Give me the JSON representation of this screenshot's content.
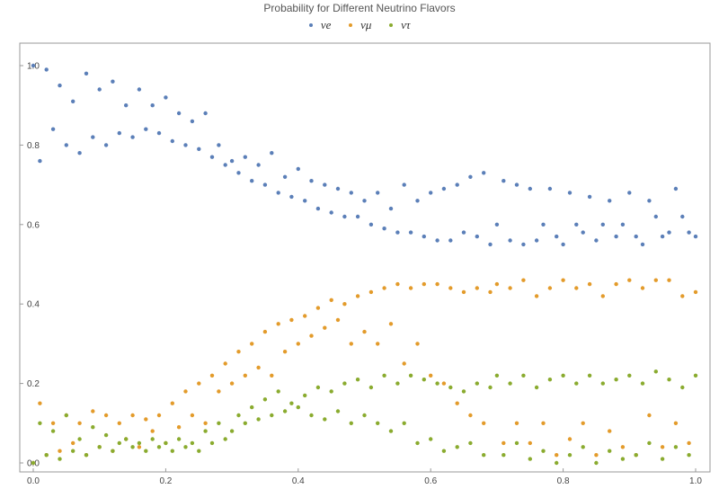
{
  "chart_data": {
    "type": "scatter",
    "title": "Probability for Different Neutrino Flavors",
    "xlabel": "",
    "ylabel": "",
    "xlim": [
      0,
      1
    ],
    "ylim": [
      0,
      1.05
    ],
    "grid": false,
    "legend_position": "top-center",
    "x_ticks": [
      "0.0",
      "0.2",
      "0.4",
      "0.6",
      "0.8",
      "1.0"
    ],
    "y_ticks": [
      "0.0",
      "0.2",
      "0.4",
      "0.6",
      "0.8",
      "1.0"
    ],
    "series": [
      {
        "name": "νe",
        "color": "#5b7fb8",
        "x": [
          0.0,
          0.01,
          0.02,
          0.03,
          0.04,
          0.05,
          0.06,
          0.07,
          0.08,
          0.09,
          0.1,
          0.11,
          0.12,
          0.13,
          0.14,
          0.15,
          0.16,
          0.17,
          0.18,
          0.19,
          0.2,
          0.21,
          0.22,
          0.23,
          0.24,
          0.25,
          0.26,
          0.27,
          0.28,
          0.29,
          0.3,
          0.31,
          0.32,
          0.33,
          0.34,
          0.35,
          0.36,
          0.37,
          0.38,
          0.39,
          0.4,
          0.41,
          0.42,
          0.43,
          0.44,
          0.45,
          0.46,
          0.47,
          0.48,
          0.49,
          0.5,
          0.51,
          0.52,
          0.53,
          0.54,
          0.55,
          0.56,
          0.57,
          0.58,
          0.59,
          0.6,
          0.61,
          0.62,
          0.63,
          0.64,
          0.65,
          0.66,
          0.67,
          0.68,
          0.69,
          0.7,
          0.71,
          0.72,
          0.73,
          0.74,
          0.75,
          0.76,
          0.77,
          0.78,
          0.79,
          0.8,
          0.81,
          0.82,
          0.83,
          0.84,
          0.85,
          0.86,
          0.87,
          0.88,
          0.89,
          0.9,
          0.91,
          0.92,
          0.93,
          0.94,
          0.95,
          0.96,
          0.97,
          0.98,
          0.99,
          1.0
        ],
        "values": [
          1.0,
          0.76,
          0.99,
          0.84,
          0.95,
          0.8,
          0.91,
          0.78,
          0.98,
          0.82,
          0.94,
          0.8,
          0.96,
          0.83,
          0.9,
          0.82,
          0.94,
          0.84,
          0.9,
          0.83,
          0.92,
          0.81,
          0.88,
          0.8,
          0.86,
          0.79,
          0.88,
          0.77,
          0.8,
          0.75,
          0.76,
          0.73,
          0.77,
          0.71,
          0.75,
          0.7,
          0.78,
          0.68,
          0.72,
          0.67,
          0.74,
          0.66,
          0.71,
          0.64,
          0.7,
          0.63,
          0.69,
          0.62,
          0.68,
          0.62,
          0.66,
          0.6,
          0.68,
          0.59,
          0.64,
          0.58,
          0.7,
          0.58,
          0.66,
          0.57,
          0.68,
          0.56,
          0.69,
          0.56,
          0.7,
          0.58,
          0.72,
          0.57,
          0.73,
          0.55,
          0.6,
          0.71,
          0.56,
          0.7,
          0.55,
          0.69,
          0.56,
          0.6,
          0.69,
          0.57,
          0.55,
          0.68,
          0.6,
          0.58,
          0.67,
          0.56,
          0.6,
          0.66,
          0.57,
          0.6,
          0.68,
          0.57,
          0.55,
          0.66,
          0.62,
          0.57,
          0.58,
          0.69,
          0.62,
          0.58,
          0.57
        ]
      },
      {
        "name": "νμ",
        "color": "#e39b2b",
        "x": [
          0.0,
          0.01,
          0.02,
          0.03,
          0.04,
          0.05,
          0.06,
          0.07,
          0.08,
          0.09,
          0.1,
          0.11,
          0.12,
          0.13,
          0.14,
          0.15,
          0.16,
          0.17,
          0.18,
          0.19,
          0.2,
          0.21,
          0.22,
          0.23,
          0.24,
          0.25,
          0.26,
          0.27,
          0.28,
          0.29,
          0.3,
          0.31,
          0.32,
          0.33,
          0.34,
          0.35,
          0.36,
          0.37,
          0.38,
          0.39,
          0.4,
          0.41,
          0.42,
          0.43,
          0.44,
          0.45,
          0.46,
          0.47,
          0.48,
          0.49,
          0.5,
          0.51,
          0.52,
          0.53,
          0.54,
          0.55,
          0.56,
          0.57,
          0.58,
          0.59,
          0.6,
          0.61,
          0.62,
          0.63,
          0.64,
          0.65,
          0.66,
          0.67,
          0.68,
          0.69,
          0.7,
          0.71,
          0.72,
          0.73,
          0.74,
          0.75,
          0.76,
          0.77,
          0.78,
          0.79,
          0.8,
          0.81,
          0.82,
          0.83,
          0.84,
          0.85,
          0.86,
          0.87,
          0.88,
          0.89,
          0.9,
          0.91,
          0.92,
          0.93,
          0.94,
          0.95,
          0.96,
          0.97,
          0.98,
          0.99,
          1.0
        ],
        "values": [
          0.0,
          0.15,
          0.02,
          0.1,
          0.03,
          0.12,
          0.05,
          0.1,
          0.02,
          0.13,
          0.04,
          0.12,
          0.03,
          0.1,
          0.06,
          0.12,
          0.04,
          0.11,
          0.08,
          0.12,
          0.05,
          0.15,
          0.09,
          0.18,
          0.12,
          0.2,
          0.1,
          0.22,
          0.18,
          0.25,
          0.2,
          0.28,
          0.22,
          0.3,
          0.24,
          0.33,
          0.22,
          0.35,
          0.28,
          0.36,
          0.3,
          0.37,
          0.32,
          0.39,
          0.34,
          0.41,
          0.36,
          0.4,
          0.3,
          0.42,
          0.33,
          0.43,
          0.3,
          0.44,
          0.35,
          0.45,
          0.25,
          0.44,
          0.3,
          0.45,
          0.22,
          0.45,
          0.2,
          0.44,
          0.15,
          0.43,
          0.12,
          0.44,
          0.1,
          0.43,
          0.45,
          0.05,
          0.44,
          0.1,
          0.46,
          0.05,
          0.42,
          0.1,
          0.44,
          0.02,
          0.46,
          0.06,
          0.44,
          0.1,
          0.45,
          0.02,
          0.42,
          0.08,
          0.45,
          0.04,
          0.46,
          0.02,
          0.44,
          0.12,
          0.46,
          0.04,
          0.46,
          0.1,
          0.42,
          0.05,
          0.43
        ]
      },
      {
        "name": "ντ",
        "color": "#8aab2f",
        "x": [
          0.0,
          0.01,
          0.02,
          0.03,
          0.04,
          0.05,
          0.06,
          0.07,
          0.08,
          0.09,
          0.1,
          0.11,
          0.12,
          0.13,
          0.14,
          0.15,
          0.16,
          0.17,
          0.18,
          0.19,
          0.2,
          0.21,
          0.22,
          0.23,
          0.24,
          0.25,
          0.26,
          0.27,
          0.28,
          0.29,
          0.3,
          0.31,
          0.32,
          0.33,
          0.34,
          0.35,
          0.36,
          0.37,
          0.38,
          0.39,
          0.4,
          0.41,
          0.42,
          0.43,
          0.44,
          0.45,
          0.46,
          0.47,
          0.48,
          0.49,
          0.5,
          0.51,
          0.52,
          0.53,
          0.54,
          0.55,
          0.56,
          0.57,
          0.58,
          0.59,
          0.6,
          0.61,
          0.62,
          0.63,
          0.64,
          0.65,
          0.66,
          0.67,
          0.68,
          0.69,
          0.7,
          0.71,
          0.72,
          0.73,
          0.74,
          0.75,
          0.76,
          0.77,
          0.78,
          0.79,
          0.8,
          0.81,
          0.82,
          0.83,
          0.84,
          0.85,
          0.86,
          0.87,
          0.88,
          0.89,
          0.9,
          0.91,
          0.92,
          0.93,
          0.94,
          0.95,
          0.96,
          0.97,
          0.98,
          0.99,
          1.0
        ],
        "values": [
          0.0,
          0.1,
          0.02,
          0.08,
          0.01,
          0.12,
          0.03,
          0.06,
          0.02,
          0.09,
          0.04,
          0.07,
          0.03,
          0.05,
          0.06,
          0.04,
          0.05,
          0.03,
          0.06,
          0.04,
          0.05,
          0.03,
          0.06,
          0.04,
          0.05,
          0.03,
          0.08,
          0.05,
          0.1,
          0.06,
          0.08,
          0.12,
          0.1,
          0.14,
          0.11,
          0.16,
          0.12,
          0.18,
          0.13,
          0.15,
          0.14,
          0.17,
          0.12,
          0.19,
          0.11,
          0.18,
          0.13,
          0.2,
          0.1,
          0.21,
          0.12,
          0.19,
          0.1,
          0.22,
          0.08,
          0.2,
          0.1,
          0.22,
          0.05,
          0.21,
          0.06,
          0.2,
          0.03,
          0.19,
          0.04,
          0.18,
          0.05,
          0.2,
          0.02,
          0.19,
          0.22,
          0.02,
          0.2,
          0.05,
          0.22,
          0.01,
          0.19,
          0.03,
          0.21,
          0.0,
          0.22,
          0.02,
          0.2,
          0.04,
          0.22,
          0.0,
          0.2,
          0.03,
          0.21,
          0.01,
          0.22,
          0.02,
          0.2,
          0.05,
          0.23,
          0.01,
          0.21,
          0.04,
          0.19,
          0.02,
          0.22
        ]
      }
    ]
  }
}
